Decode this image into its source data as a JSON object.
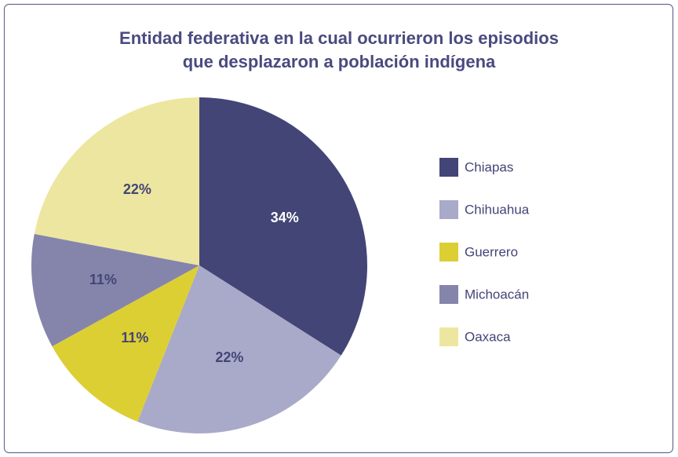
{
  "chart_data": {
    "type": "pie",
    "title": [
      "Entidad federativa en la cual ocurrieron los episodios",
      "que desplazaron a población indígena"
    ],
    "categories": [
      "Chiapas",
      "Chihuahua",
      "Guerrero",
      "Michoacán",
      "Oaxaca"
    ],
    "values": [
      34,
      22,
      11,
      11,
      22
    ],
    "value_labels": [
      "34%",
      "22%",
      "11%",
      "11%",
      "22%"
    ],
    "colors": [
      "#434577",
      "#a9a9c9",
      "#dccf33",
      "#8585ab",
      "#ede6a0"
    ],
    "legend": "right"
  }
}
